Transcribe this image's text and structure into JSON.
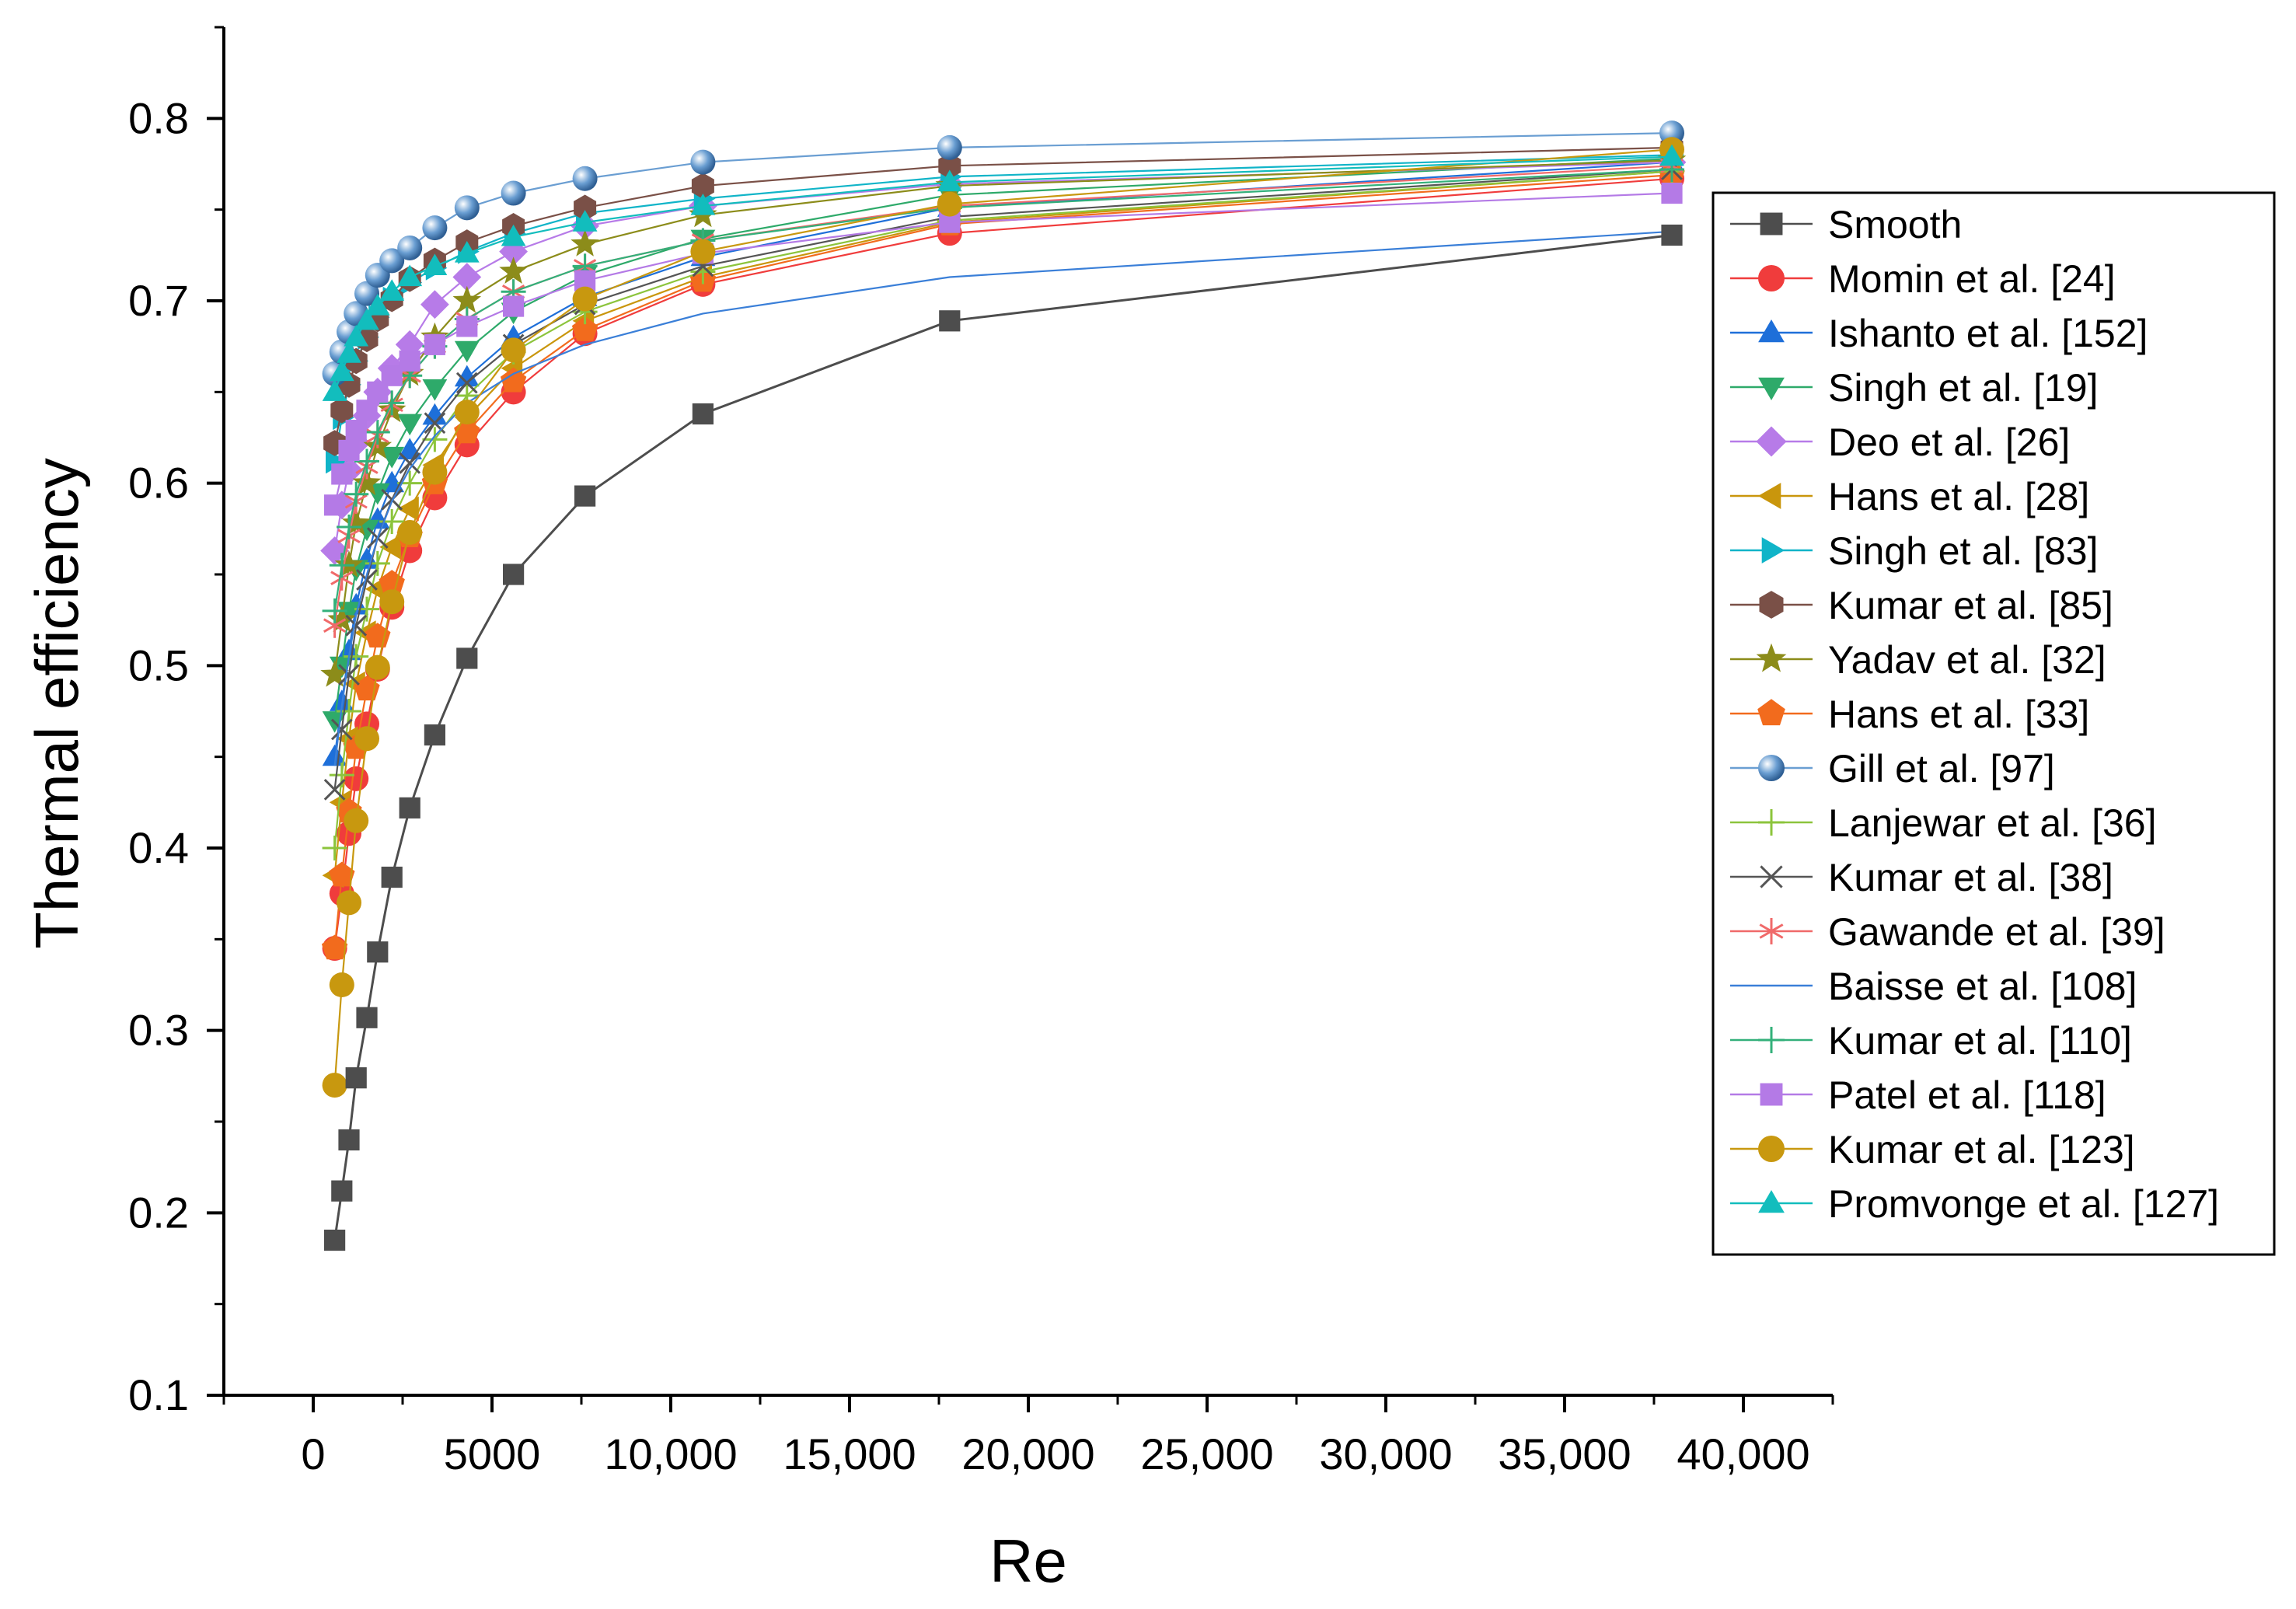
{
  "chart_data": {
    "type": "line",
    "title": "",
    "xlabel": "Re",
    "ylabel": "Thermal efficiency",
    "xlim": [
      -2500,
      42500
    ],
    "ylim": [
      0.1,
      0.85
    ],
    "x_ticks": [
      0,
      5000,
      10000,
      15000,
      20000,
      25000,
      30000,
      35000,
      40000
    ],
    "x_tick_labels": [
      "0",
      "5000",
      "10,000",
      "15,000",
      "20,000",
      "25,000",
      "30,000",
      "35,000",
      "40,000"
    ],
    "y_ticks": [
      0.1,
      0.2,
      0.3,
      0.4,
      0.5,
      0.6,
      0.7,
      0.8
    ],
    "y_tick_labels": [
      "0.1",
      "0.2",
      "0.3",
      "0.4",
      "0.5",
      "0.6",
      "0.7",
      "0.8"
    ],
    "grid": false,
    "legend_position": "right",
    "x": [
      600,
      800,
      1000,
      1200,
      1500,
      1800,
      2200,
      2700,
      3400,
      4300,
      5600,
      7600,
      10900,
      17800,
      38000
    ],
    "series": [
      {
        "name": "Smooth",
        "color": "#4d4d4d",
        "marker": "square",
        "values": [
          0.185,
          0.212,
          0.24,
          0.274,
          0.307,
          0.343,
          0.384,
          0.422,
          0.462,
          0.504,
          0.55,
          0.593,
          0.638,
          0.689,
          0.736
        ]
      },
      {
        "name": "Momin et al. [24]",
        "color": "#f03c3c",
        "marker": "circle",
        "values": [
          0.345,
          0.375,
          0.408,
          0.438,
          0.468,
          0.498,
          0.532,
          0.563,
          0.592,
          0.621,
          0.65,
          0.682,
          0.709,
          0.737,
          0.767
        ]
      },
      {
        "name": "Ishanto et al. [152]",
        "color": "#1e6fd9",
        "marker": "triangle-up",
        "values": [
          0.45,
          0.48,
          0.508,
          0.533,
          0.558,
          0.58,
          0.6,
          0.618,
          0.637,
          0.658,
          0.68,
          0.702,
          0.724,
          0.751,
          0.776
        ]
      },
      {
        "name": "Singh et al. [19]",
        "color": "#2eaa6a",
        "marker": "triangle-down",
        "values": [
          0.47,
          0.5,
          0.53,
          0.553,
          0.575,
          0.595,
          0.615,
          0.633,
          0.652,
          0.673,
          0.694,
          0.714,
          0.734,
          0.758,
          0.778
        ]
      },
      {
        "name": "Deo et al. [26]",
        "color": "#b77be8",
        "marker": "diamond",
        "values": [
          0.563,
          0.588,
          0.607,
          0.622,
          0.637,
          0.65,
          0.663,
          0.676,
          0.698,
          0.713,
          0.727,
          0.741,
          0.752,
          0.764,
          0.776
        ]
      },
      {
        "name": "Hans et al. [28]",
        "color": "#c9960c",
        "marker": "triangle-left",
        "values": [
          0.385,
          0.425,
          0.46,
          0.49,
          0.518,
          0.542,
          0.565,
          0.586,
          0.61,
          0.636,
          0.663,
          0.689,
          0.713,
          0.743,
          0.771
        ]
      },
      {
        "name": "Singh et al. [83]",
        "color": "#10b4c8",
        "marker": "triangle-right",
        "values": [
          0.612,
          0.636,
          0.654,
          0.667,
          0.68,
          0.691,
          0.701,
          0.71,
          0.718,
          0.727,
          0.737,
          0.748,
          0.756,
          0.768,
          0.78
        ]
      },
      {
        "name": "Kumar et al. [85]",
        "color": "#7a5047",
        "marker": "hexagon",
        "values": [
          0.622,
          0.64,
          0.654,
          0.667,
          0.679,
          0.69,
          0.701,
          0.712,
          0.722,
          0.732,
          0.741,
          0.751,
          0.763,
          0.774,
          0.784
        ]
      },
      {
        "name": "Yadav et al. [32]",
        "color": "#8c8c1a",
        "marker": "star",
        "values": [
          0.495,
          0.525,
          0.555,
          0.578,
          0.6,
          0.62,
          0.64,
          0.66,
          0.68,
          0.7,
          0.716,
          0.731,
          0.747,
          0.763,
          0.777
        ]
      },
      {
        "name": "Hans et al. [33]",
        "color": "#f26b1d",
        "marker": "pentagon",
        "values": [
          0.345,
          0.385,
          0.42,
          0.455,
          0.487,
          0.516,
          0.545,
          0.571,
          0.6,
          0.628,
          0.656,
          0.684,
          0.711,
          0.742,
          0.769
        ]
      },
      {
        "name": "Gill et al. [97]",
        "color": "#6a9ed2",
        "marker": "sphere",
        "values": [
          0.66,
          0.672,
          0.683,
          0.693,
          0.704,
          0.714,
          0.722,
          0.729,
          0.74,
          0.751,
          0.759,
          0.767,
          0.776,
          0.784,
          0.792
        ]
      },
      {
        "name": "Lanjewar et al. [36]",
        "color": "#8cc43c",
        "marker": "plus",
        "values": [
          0.4,
          0.44,
          0.475,
          0.505,
          0.531,
          0.556,
          0.579,
          0.6,
          0.624,
          0.648,
          0.672,
          0.694,
          0.716,
          0.744,
          0.771
        ]
      },
      {
        "name": "Kumar et al. [38]",
        "color": "#555555",
        "marker": "cross",
        "values": [
          0.432,
          0.465,
          0.495,
          0.522,
          0.547,
          0.57,
          0.591,
          0.611,
          0.633,
          0.655,
          0.676,
          0.698,
          0.719,
          0.746,
          0.772
        ]
      },
      {
        "name": "Gawande et al. [39]",
        "color": "#f06a6a",
        "marker": "asterisk",
        "values": [
          0.522,
          0.548,
          0.571,
          0.59,
          0.609,
          0.626,
          0.643,
          0.659,
          0.675,
          0.69,
          0.705,
          0.719,
          0.733,
          0.752,
          0.774
        ]
      },
      {
        "name": "Baisse et al. [108]",
        "color": "#3a7fd8",
        "marker": "none",
        "values": [
          0.445,
          0.478,
          0.505,
          0.528,
          0.55,
          0.57,
          0.59,
          0.608,
          0.626,
          0.644,
          0.66,
          0.676,
          0.693,
          0.713,
          0.738
        ]
      },
      {
        "name": "Kumar et al. [110]",
        "color": "#33b07a",
        "marker": "plus",
        "values": [
          0.53,
          0.555,
          0.576,
          0.594,
          0.612,
          0.628,
          0.644,
          0.659,
          0.675,
          0.69,
          0.705,
          0.719,
          0.733,
          0.751,
          0.772
        ]
      },
      {
        "name": "Patel et al. [118]",
        "color": "#b47ae6",
        "marker": "square",
        "values": [
          0.588,
          0.605,
          0.618,
          0.629,
          0.64,
          0.65,
          0.659,
          0.667,
          0.676,
          0.686,
          0.697,
          0.711,
          0.726,
          0.743,
          0.759
        ]
      },
      {
        "name": "Kumar et al. [123]",
        "color": "#c8980f",
        "marker": "circle",
        "values": [
          0.27,
          0.325,
          0.37,
          0.415,
          0.46,
          0.499,
          0.535,
          0.573,
          0.606,
          0.639,
          0.673,
          0.701,
          0.727,
          0.753,
          0.783
        ]
      },
      {
        "name": "Promvonge et al. [127]",
        "color": "#12bdbd",
        "marker": "triangle-up",
        "values": [
          0.65,
          0.661,
          0.671,
          0.68,
          0.689,
          0.697,
          0.705,
          0.713,
          0.719,
          0.726,
          0.735,
          0.743,
          0.752,
          0.765,
          0.779
        ]
      }
    ]
  }
}
